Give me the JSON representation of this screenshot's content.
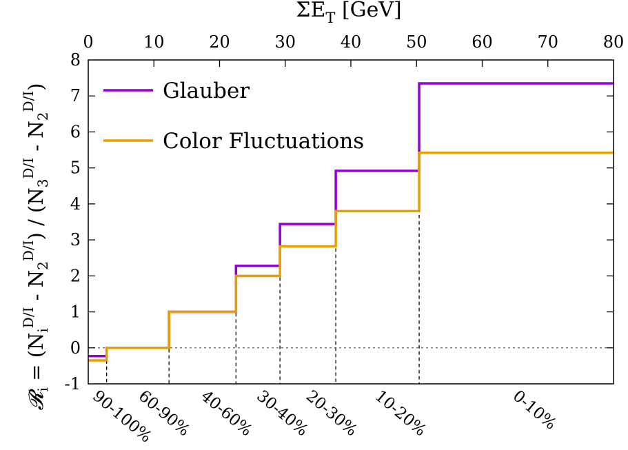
{
  "chart_data": {
    "type": "line",
    "step": true,
    "title": "",
    "top_xlabel": {
      "main": "ΣE",
      "sub": "T",
      "unit": " [GeV]"
    },
    "xlim": [
      0,
      80
    ],
    "ylim": [
      -1,
      8
    ],
    "x_ticks": [
      "0",
      "10",
      "20",
      "30",
      "40",
      "50",
      "60",
      "70",
      "80"
    ],
    "y_ticks": [
      "-1",
      "0",
      "1",
      "2",
      "3",
      "4",
      "5",
      "6",
      "7",
      "8"
    ],
    "ylabel": "𝓡i = (NiD/I - N2D/I) / (N3D/I - N2D/I)",
    "bin_edges": [
      0,
      2.8,
      12.3,
      22.5,
      29.2,
      37.7,
      50.4,
      80
    ],
    "centrality_labels": [
      {
        "label": "90-100%",
        "x": 2.0
      },
      {
        "label": "60-90%",
        "x": 9.0
      },
      {
        "label": "40-60%",
        "x": 18.5
      },
      {
        "label": "30-40%",
        "x": 27.0
      },
      {
        "label": "20-30%",
        "x": 34.5
      },
      {
        "label": "10-20%",
        "x": 45.0
      },
      {
        "label": "0-10%",
        "x": 66.0
      }
    ],
    "series": [
      {
        "name": "Glauber",
        "color": "#9400d3",
        "values": [
          -0.23,
          0.0,
          1.0,
          2.28,
          3.44,
          4.92,
          7.35
        ]
      },
      {
        "name": "Color Fluctuations",
        "color": "#e69f00",
        "values": [
          -0.35,
          0.0,
          1.0,
          2.0,
          2.82,
          3.8,
          5.42
        ]
      }
    ],
    "zero_line": true,
    "legend_position": "top-left",
    "grid": false
  }
}
